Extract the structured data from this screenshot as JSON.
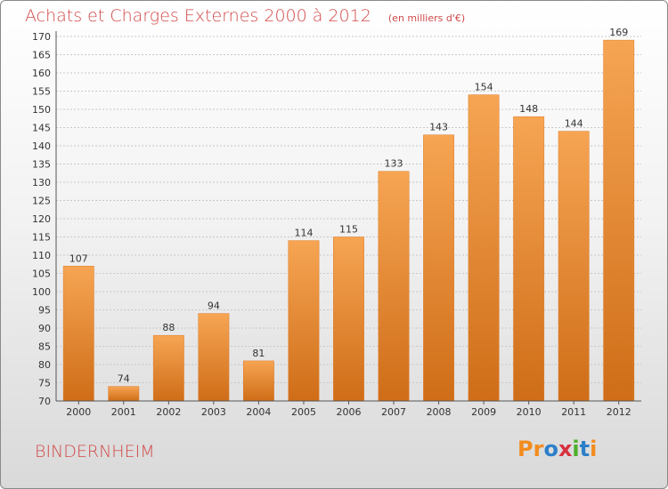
{
  "header": {
    "title": "Achats et Charges Externes 2000 à 2012",
    "subtitle": "(en milliers d'€)"
  },
  "footer": {
    "place": "BINDERNHEIM",
    "logo_letters": [
      "P",
      "r",
      "o",
      "x",
      "i",
      "t",
      "i"
    ],
    "logo_colors": [
      "#f28c1e",
      "#f28c1e",
      "#2c7fc9",
      "#d7303e",
      "#4caf2a",
      "#2c7fc9",
      "#f28c1e"
    ]
  },
  "chart_data": {
    "type": "bar",
    "categories": [
      "2000",
      "2001",
      "2002",
      "2003",
      "2004",
      "2005",
      "2006",
      "2007",
      "2008",
      "2009",
      "2010",
      "2011",
      "2012"
    ],
    "values": [
      107,
      74,
      88,
      94,
      81,
      114,
      115,
      133,
      143,
      154,
      148,
      144,
      169
    ],
    "ylim": [
      70,
      170
    ],
    "ytick_step": 5,
    "grid": true,
    "colors": {
      "bar_top": "#f6a553",
      "bar_bottom": "#cf6d18",
      "label": "#333333",
      "axis": "#555555"
    }
  }
}
